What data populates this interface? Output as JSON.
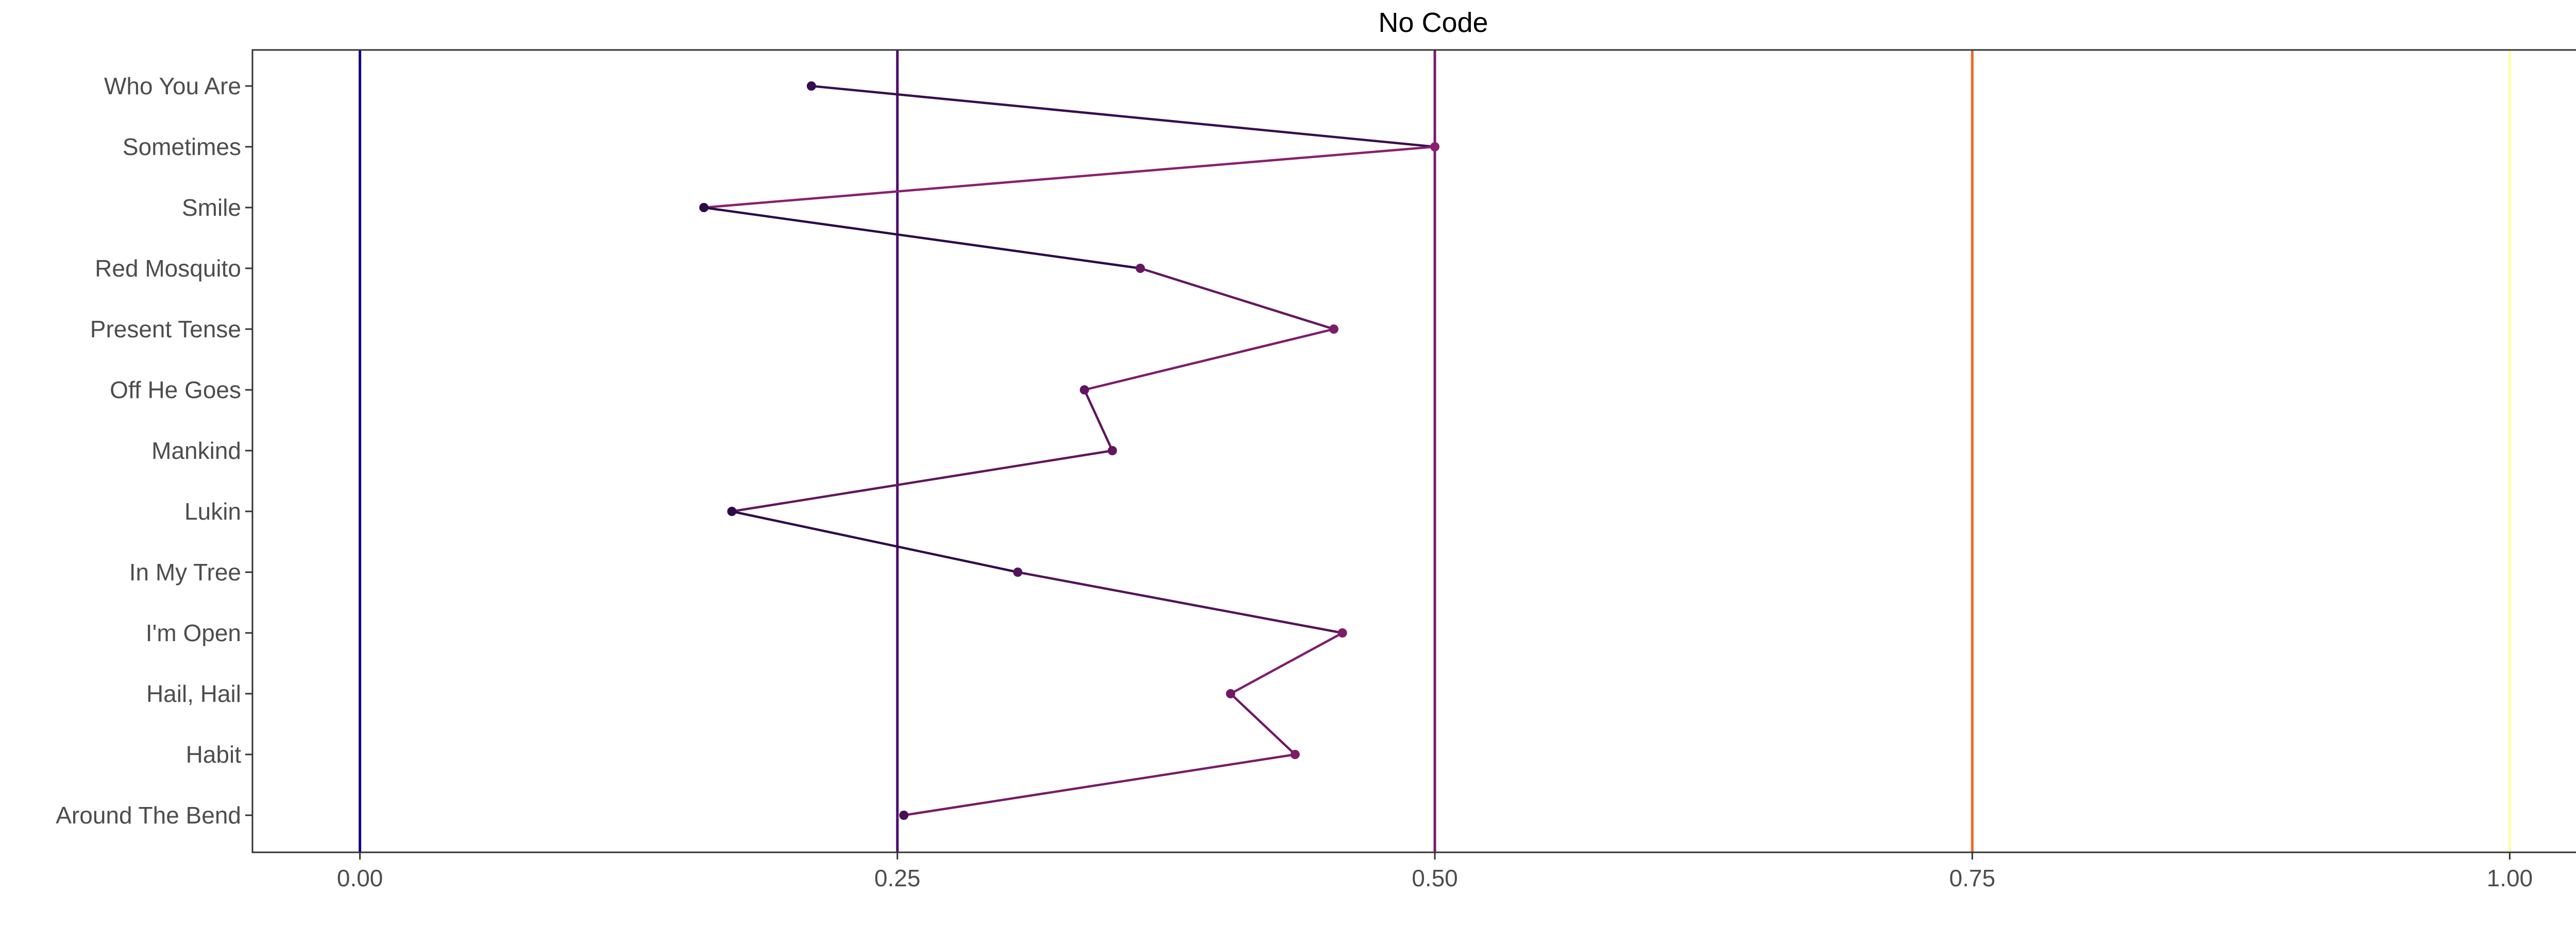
{
  "chart_data": {
    "type": "line",
    "title": "No Code",
    "xlabel": "",
    "ylabel": "",
    "xlim": [
      -0.05,
      1.05
    ],
    "grid": false,
    "x_ticks": [
      {
        "value": 0.0,
        "label": "0.00"
      },
      {
        "value": 0.25,
        "label": "0.25"
      },
      {
        "value": 0.5,
        "label": "0.50"
      },
      {
        "value": 0.75,
        "label": "0.75"
      },
      {
        "value": 1.0,
        "label": "1.00"
      }
    ],
    "reference_lines": [
      {
        "x": 0.0,
        "color": "#0d0887"
      },
      {
        "x": 0.25,
        "color": "#4b0c6b"
      },
      {
        "x": 0.5,
        "color": "#781c6d"
      },
      {
        "x": 0.75,
        "color": "#ed6925"
      },
      {
        "x": 1.0,
        "color": "#fcffa4"
      }
    ],
    "categories": [
      "Who You Are",
      "Sometimes",
      "Smile",
      "Red Mosquito",
      "Present Tense",
      "Off He Goes",
      "Mankind",
      "Lukin",
      "In My Tree",
      "I'm Open",
      "Hail, Hail",
      "Habit",
      "Around The Bend"
    ],
    "values": [
      0.21,
      0.5,
      0.16,
      0.363,
      0.453,
      0.337,
      0.35,
      0.173,
      0.306,
      0.457,
      0.405,
      0.435,
      0.253
    ],
    "colors": {
      "low": "#2a0a4a",
      "high": "#8c1f6e",
      "axis": "#333333",
      "text": "#4d4d4d"
    }
  }
}
